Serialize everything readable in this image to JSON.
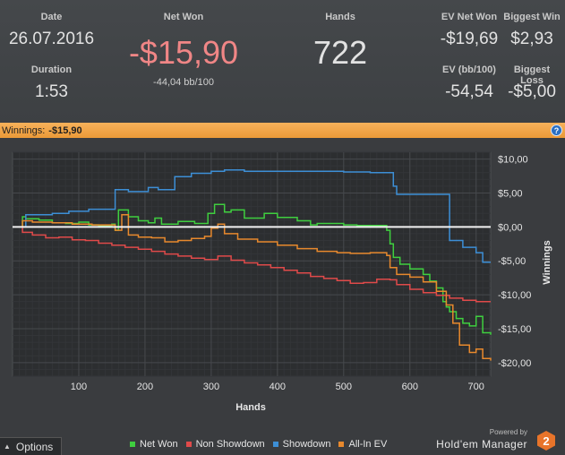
{
  "stats": {
    "date_label": "Date",
    "date_value": "26.07.2016",
    "duration_label": "Duration",
    "duration_value": "1:53",
    "net_won_label": "Net Won",
    "net_won_value": "-$15,90",
    "net_won_sub": "-44,04 bb/100",
    "hands_label": "Hands",
    "hands_value": "722",
    "ev_net_won_label": "EV Net Won",
    "ev_net_won_value": "-$19,69",
    "ev_bb_label": "EV (bb/100)",
    "ev_bb_value": "-54,54",
    "biggest_win_label": "Biggest Win",
    "biggest_win_value": "$2,93",
    "biggest_loss_label": "Biggest Loss",
    "biggest_loss_value": "-$5,00"
  },
  "titlebar": {
    "label": "Winnings:",
    "amount": "-$15,90",
    "help_icon": "?"
  },
  "chart_data": {
    "type": "line",
    "xlabel": "Hands",
    "ylabel": "Winnings",
    "x_ticks": [
      100,
      200,
      300,
      400,
      500,
      600,
      700
    ],
    "xlim": [
      0,
      722
    ],
    "y_ticks": [
      10,
      5,
      0,
      -5,
      -10,
      -15,
      -20
    ],
    "y_tick_labels": [
      "$10,00",
      "$5,00",
      "$0,00",
      "-$5,00",
      "-$10,00",
      "-$15,00",
      "-$20,00"
    ],
    "ylim": [
      -22,
      11
    ],
    "grid": true,
    "legend_position": "bottom",
    "series": [
      {
        "name": "Net Won",
        "color": "#3fcf3f",
        "points": [
          [
            0,
            0
          ],
          [
            15,
            1.5
          ],
          [
            20,
            1.2
          ],
          [
            40,
            1.0
          ],
          [
            60,
            0.6
          ],
          [
            80,
            0.5
          ],
          [
            100,
            0.7
          ],
          [
            115,
            0.3
          ],
          [
            130,
            0.2
          ],
          [
            150,
            0.4
          ],
          [
            155,
            -0.5
          ],
          [
            160,
            2.5
          ],
          [
            175,
            1.5
          ],
          [
            190,
            0.9
          ],
          [
            205,
            0.6
          ],
          [
            215,
            1.3
          ],
          [
            225,
            0.4
          ],
          [
            250,
            0.8
          ],
          [
            275,
            0.5
          ],
          [
            295,
            2.0
          ],
          [
            305,
            3.3
          ],
          [
            320,
            2.2
          ],
          [
            330,
            2.5
          ],
          [
            350,
            1.3
          ],
          [
            380,
            2.0
          ],
          [
            400,
            1.4
          ],
          [
            430,
            0.9
          ],
          [
            450,
            0.3
          ],
          [
            460,
            0.5
          ],
          [
            500,
            0.3
          ],
          [
            520,
            0.2
          ],
          [
            540,
            0.2
          ],
          [
            560,
            0.2
          ],
          [
            565,
            -0.5
          ],
          [
            570,
            -2.5
          ],
          [
            575,
            -4.5
          ],
          [
            585,
            -5.5
          ],
          [
            600,
            -6.2
          ],
          [
            620,
            -7.0
          ],
          [
            630,
            -8.0
          ],
          [
            640,
            -9.0
          ],
          [
            650,
            -11.0
          ],
          [
            655,
            -11.8
          ],
          [
            660,
            -12.5
          ],
          [
            670,
            -13.5
          ],
          [
            680,
            -14.2
          ],
          [
            690,
            -14.6
          ],
          [
            700,
            -13.2
          ],
          [
            710,
            -15.6
          ],
          [
            722,
            -15.9
          ]
        ]
      },
      {
        "name": "Non Showdown",
        "color": "#e04a4a",
        "points": [
          [
            0,
            0
          ],
          [
            15,
            -0.8
          ],
          [
            30,
            -1.2
          ],
          [
            50,
            -1.6
          ],
          [
            70,
            -1.5
          ],
          [
            90,
            -1.9
          ],
          [
            110,
            -2.0
          ],
          [
            130,
            -2.4
          ],
          [
            150,
            -2.7
          ],
          [
            170,
            -3.0
          ],
          [
            190,
            -3.3
          ],
          [
            210,
            -3.6
          ],
          [
            230,
            -4.0
          ],
          [
            250,
            -4.3
          ],
          [
            270,
            -4.6
          ],
          [
            290,
            -4.8
          ],
          [
            310,
            -4.3
          ],
          [
            330,
            -4.9
          ],
          [
            350,
            -5.3
          ],
          [
            370,
            -5.6
          ],
          [
            390,
            -6.0
          ],
          [
            410,
            -6.4
          ],
          [
            430,
            -6.8
          ],
          [
            450,
            -7.3
          ],
          [
            470,
            -7.6
          ],
          [
            490,
            -7.9
          ],
          [
            510,
            -8.3
          ],
          [
            530,
            -8.2
          ],
          [
            550,
            -7.7
          ],
          [
            570,
            -7.8
          ],
          [
            580,
            -8.5
          ],
          [
            600,
            -9.2
          ],
          [
            620,
            -9.7
          ],
          [
            640,
            -10.1
          ],
          [
            660,
            -10.5
          ],
          [
            680,
            -10.8
          ],
          [
            700,
            -11.0
          ],
          [
            722,
            -11.0
          ]
        ]
      },
      {
        "name": "Showdown",
        "color": "#3d8fd6",
        "points": [
          [
            0,
            0
          ],
          [
            20,
            1.8
          ],
          [
            30,
            1.8
          ],
          [
            60,
            2.0
          ],
          [
            80,
            2.0
          ],
          [
            85,
            2.3
          ],
          [
            110,
            2.3
          ],
          [
            115,
            2.6
          ],
          [
            150,
            2.6
          ],
          [
            155,
            5.5
          ],
          [
            170,
            5.5
          ],
          [
            175,
            5.2
          ],
          [
            200,
            5.2
          ],
          [
            205,
            5.8
          ],
          [
            215,
            5.8
          ],
          [
            220,
            5.5
          ],
          [
            240,
            5.5
          ],
          [
            245,
            7.4
          ],
          [
            260,
            7.4
          ],
          [
            270,
            7.9
          ],
          [
            290,
            7.9
          ],
          [
            300,
            8.2
          ],
          [
            320,
            8.4
          ],
          [
            350,
            8.2
          ],
          [
            400,
            8.2
          ],
          [
            450,
            8.2
          ],
          [
            500,
            8.1
          ],
          [
            540,
            8.0
          ],
          [
            570,
            8.0
          ],
          [
            575,
            6.0
          ],
          [
            580,
            4.8
          ],
          [
            600,
            4.8
          ],
          [
            630,
            4.8
          ],
          [
            650,
            4.8
          ],
          [
            660,
            -2.0
          ],
          [
            680,
            -3.0
          ],
          [
            700,
            -3.8
          ],
          [
            710,
            -5.2
          ],
          [
            722,
            -5.2
          ]
        ]
      },
      {
        "name": "All-In EV",
        "color": "#e8892d",
        "points": [
          [
            0,
            0
          ],
          [
            15,
            0.9
          ],
          [
            30,
            0.7
          ],
          [
            60,
            0.6
          ],
          [
            90,
            0.4
          ],
          [
            120,
            0.3
          ],
          [
            150,
            0.3
          ],
          [
            155,
            -0.5
          ],
          [
            165,
            1.8
          ],
          [
            175,
            -1.2
          ],
          [
            190,
            -1.5
          ],
          [
            210,
            -1.6
          ],
          [
            230,
            -2.2
          ],
          [
            250,
            -2.0
          ],
          [
            270,
            -1.7
          ],
          [
            290,
            -1.4
          ],
          [
            300,
            -0.2
          ],
          [
            310,
            0.4
          ],
          [
            320,
            -1.0
          ],
          [
            340,
            -1.8
          ],
          [
            370,
            -2.2
          ],
          [
            400,
            -2.7
          ],
          [
            430,
            -3.2
          ],
          [
            460,
            -3.6
          ],
          [
            490,
            -3.8
          ],
          [
            510,
            -3.9
          ],
          [
            540,
            -3.8
          ],
          [
            565,
            -4.2
          ],
          [
            570,
            -6.0
          ],
          [
            580,
            -7.0
          ],
          [
            600,
            -7.4
          ],
          [
            620,
            -8.1
          ],
          [
            640,
            -9.5
          ],
          [
            655,
            -11.5
          ],
          [
            665,
            -14.2
          ],
          [
            675,
            -17.4
          ],
          [
            690,
            -18.5
          ],
          [
            700,
            -18.0
          ],
          [
            710,
            -19.4
          ],
          [
            722,
            -19.7
          ]
        ]
      }
    ]
  },
  "footer": {
    "options_label": "Options",
    "powered_by": "Powered by",
    "brand_name": "Hold'em Manager",
    "brand_badge": "2"
  }
}
